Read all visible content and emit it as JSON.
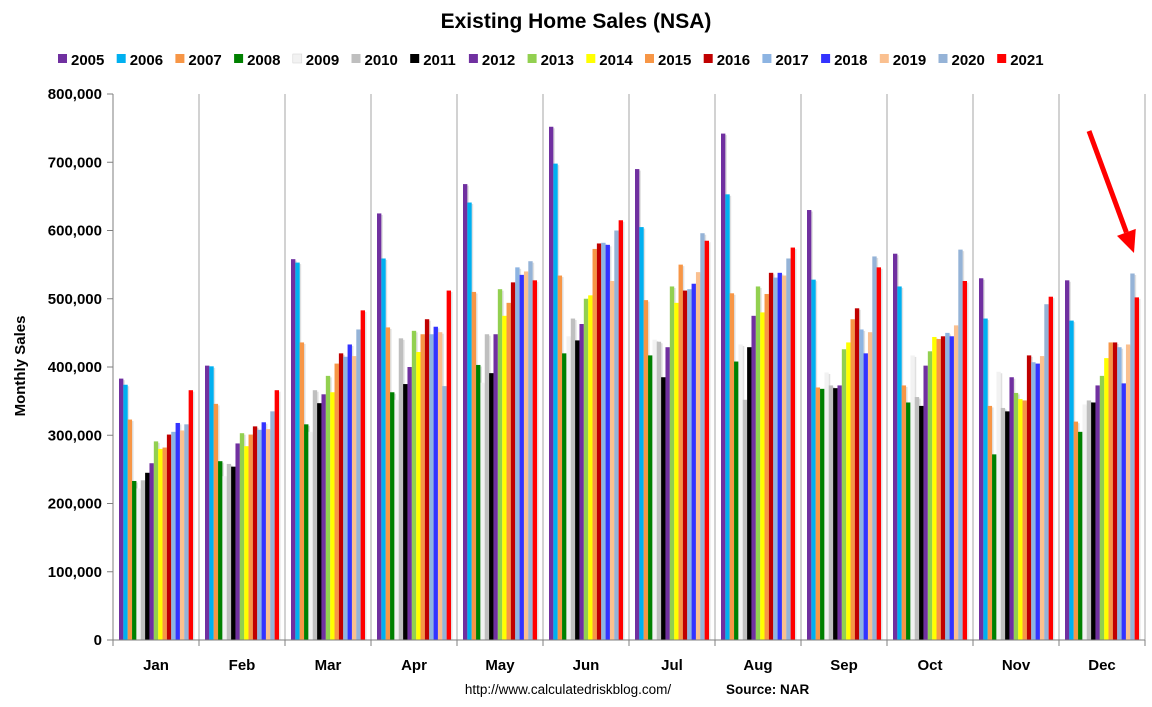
{
  "chart_data": {
    "type": "bar",
    "title": "Existing Home Sales (NSA)",
    "ylabel": "Monthly Sales",
    "xlabel": "",
    "ylim": [
      0,
      800000
    ],
    "yticks": [
      0,
      100000,
      200000,
      300000,
      400000,
      500000,
      600000,
      700000,
      800000
    ],
    "ytick_labels": [
      "0",
      "100,000",
      "200,000",
      "300,000",
      "400,000",
      "500,000",
      "600,000",
      "700,000",
      "800,000"
    ],
    "grid": "vertical",
    "legend_position": "top",
    "categories": [
      "Jan",
      "Feb",
      "Mar",
      "Apr",
      "May",
      "Jun",
      "Jul",
      "Aug",
      "Sep",
      "Oct",
      "Nov",
      "Dec"
    ],
    "series": [
      {
        "name": "2005",
        "color": "#7030A0",
        "values": [
          383000,
          402000,
          558000,
          625000,
          668000,
          752000,
          690000,
          742000,
          630000,
          566000,
          530000,
          527000
        ]
      },
      {
        "name": "2006",
        "color": "#00B0F0",
        "values": [
          374000,
          401000,
          553000,
          559000,
          641000,
          698000,
          605000,
          653000,
          528000,
          518000,
          471000,
          468000
        ]
      },
      {
        "name": "2007",
        "color": "#F79646",
        "values": [
          323000,
          346000,
          436000,
          458000,
          510000,
          534000,
          498000,
          508000,
          370000,
          373000,
          343000,
          320000
        ]
      },
      {
        "name": "2008",
        "color": "#008000",
        "values": [
          233000,
          262000,
          316000,
          363000,
          403000,
          420000,
          417000,
          408000,
          368000,
          348000,
          272000,
          305000
        ]
      },
      {
        "name": "2009",
        "color": "#F2F2F2",
        "values": [
          222000,
          240000,
          305000,
          352000,
          377000,
          445000,
          440000,
          433000,
          392000,
          417000,
          393000,
          345000
        ]
      },
      {
        "name": "2010",
        "color": "#BFBFBF",
        "values": [
          234000,
          258000,
          366000,
          442000,
          448000,
          471000,
          437000,
          352000,
          373000,
          356000,
          340000,
          351000
        ]
      },
      {
        "name": "2011",
        "color": "#000000",
        "values": [
          245000,
          254000,
          347000,
          375000,
          391000,
          439000,
          385000,
          429000,
          369000,
          343000,
          335000,
          348000
        ]
      },
      {
        "name": "2012",
        "color": "#7030A0",
        "values": [
          259000,
          288000,
          360000,
          400000,
          448000,
          463000,
          429000,
          475000,
          373000,
          402000,
          385000,
          373000
        ]
      },
      {
        "name": "2013",
        "color": "#92D050",
        "values": [
          291000,
          303000,
          387000,
          453000,
          514000,
          500000,
          518000,
          518000,
          426000,
          423000,
          362000,
          387000
        ]
      },
      {
        "name": "2014",
        "color": "#FFFF00",
        "values": [
          280000,
          284000,
          363000,
          422000,
          475000,
          505000,
          494000,
          480000,
          436000,
          444000,
          353000,
          413000
        ]
      },
      {
        "name": "2015",
        "color": "#F79646",
        "values": [
          282000,
          301000,
          405000,
          448000,
          494000,
          573000,
          550000,
          507000,
          470000,
          441000,
          351000,
          436000
        ]
      },
      {
        "name": "2016",
        "color": "#C00000",
        "values": [
          301000,
          313000,
          420000,
          470000,
          524000,
          581000,
          512000,
          538000,
          486000,
          445000,
          417000,
          436000
        ]
      },
      {
        "name": "2017",
        "color": "#8DB4E2",
        "values": [
          305000,
          308000,
          415000,
          448000,
          546000,
          582000,
          514000,
          531000,
          455000,
          450000,
          407000,
          429000
        ]
      },
      {
        "name": "2018",
        "color": "#3333FF",
        "values": [
          318000,
          319000,
          433000,
          459000,
          535000,
          579000,
          522000,
          538000,
          420000,
          445000,
          405000,
          376000
        ]
      },
      {
        "name": "2019",
        "color": "#FAC090",
        "values": [
          307000,
          309000,
          416000,
          451000,
          540000,
          526000,
          539000,
          534000,
          451000,
          461000,
          416000,
          433000
        ]
      },
      {
        "name": "2020",
        "color": "#95B3D7",
        "values": [
          316000,
          335000,
          455000,
          372000,
          555000,
          600000,
          596000,
          559000,
          562000,
          572000,
          492000,
          537000
        ]
      },
      {
        "name": "2021",
        "color": "#FF0000",
        "values": [
          366000,
          366000,
          483000,
          512000,
          527000,
          615000,
          585000,
          575000,
          546000,
          526000,
          503000,
          502000
        ]
      }
    ],
    "annotations": [
      {
        "type": "arrow",
        "color": "#FF0000",
        "points_to": {
          "category": "Dec",
          "series": "2021"
        }
      }
    ]
  },
  "footer": {
    "url": "http://www.calculatedriskblog.com/",
    "source": "Source: NAR"
  }
}
